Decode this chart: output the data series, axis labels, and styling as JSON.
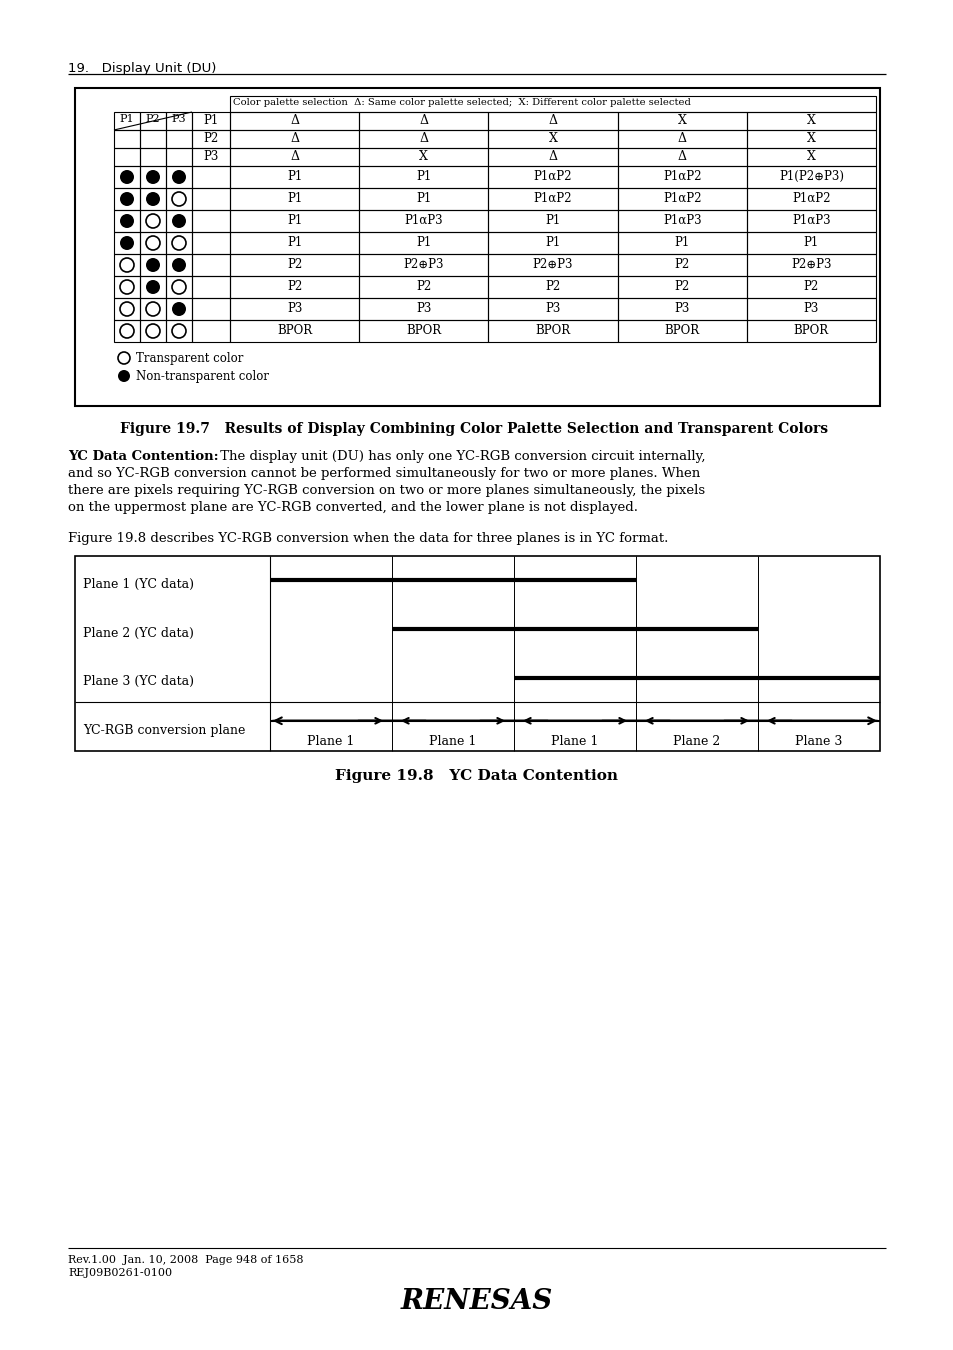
{
  "page_header": "19.   Display Unit (DU)",
  "fig197_title": "Figure 19.7   Results of Display Combining Color Palette Selection and Transparent Colors",
  "fig198_title": "Figure 19.8   YC Data Contention",
  "table_header": "Color palette selection  Δ: Same color palette selected;  X: Different color palette selected",
  "col_headers_vals": [
    "Δ",
    "Δ",
    "Δ",
    "X",
    "X"
  ],
  "row2_p2": [
    "Δ",
    "Δ",
    "X",
    "Δ",
    "X"
  ],
  "row3_p3": [
    "Δ",
    "X",
    "Δ",
    "Δ",
    "X"
  ],
  "data_col1": [
    "P1",
    "P1",
    "P1",
    "P1",
    "P2",
    "P2",
    "P3",
    "BPOR"
  ],
  "data_col2": [
    "P1",
    "P1",
    "P1αP3",
    "P1",
    "P2⊕P3",
    "P2",
    "P3",
    "BPOR"
  ],
  "data_col3": [
    "P1αP2",
    "P1αP2",
    "P1",
    "P1",
    "P2⊕P3",
    "P2",
    "P3",
    "BPOR"
  ],
  "data_col4": [
    "P1αP2",
    "P1αP2",
    "P1αP3",
    "P1",
    "P2",
    "P2",
    "P3",
    "BPOR"
  ],
  "data_col5": [
    "P1(P2⊕P3)",
    "P1αP2",
    "P1αP3",
    "P1",
    "P2⊕P3",
    "P2",
    "P3",
    "BPOR"
  ],
  "p1_symbols": [
    1,
    1,
    1,
    1,
    0,
    0,
    0,
    0
  ],
  "p2_symbols": [
    1,
    1,
    0,
    0,
    1,
    1,
    0,
    0
  ],
  "p3_symbols": [
    1,
    0,
    1,
    0,
    1,
    0,
    1,
    0
  ],
  "yc_text_bold": "YC Data Contention:",
  "yc_text_rest": " The display unit (DU) has only one YC-RGB conversion circuit internally,",
  "yc_text_lines": [
    "and so YC-RGB conversion cannot be performed simultaneously for two or more planes. When",
    "there are pixels requiring YC-RGB conversion on two or more planes simultaneously, the pixels",
    "on the uppermost plane are YC-RGB converted, and the lower plane is not displayed."
  ],
  "fig198_desc": "Figure 19.8 describes YC-RGB conversion when the data for three planes is in YC format.",
  "plane_labels": [
    "Plane 1 (YC data)",
    "Plane 2 (YC data)",
    "Plane 3 (YC data)",
    "YC-RGB conversion plane"
  ],
  "conversion_labels": [
    "Plane 1",
    "Plane 1",
    "Plane 1",
    "Plane 2",
    "Plane 3"
  ],
  "footer_line1": "Rev.1.00  Jan. 10, 2008  Page 948 of 1658",
  "footer_line2": "REJ09B0261-0100",
  "bg_color": "#ffffff"
}
